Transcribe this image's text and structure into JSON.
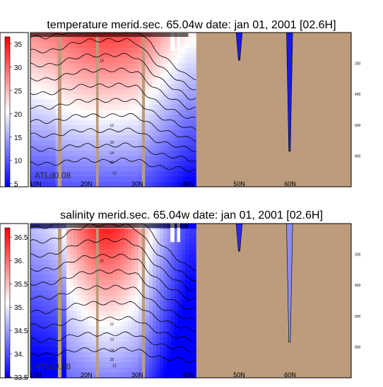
{
  "chart_data": [
    {
      "type": "heatmap",
      "title": "temperature merid.sec. 65.04w   date: jan 01, 2001   [02.6H]",
      "x_tick_labels": [
        "10N",
        "20N",
        "30N",
        "40N",
        "50N",
        "60N"
      ],
      "x_ticks_deg": [
        10,
        20,
        30,
        40,
        50,
        60
      ],
      "x_range_deg": [
        9,
        72
      ],
      "depth_tick_labels": [
        "200",
        "400",
        "600",
        "800"
      ],
      "depth_ticks": [
        200,
        400,
        600,
        800
      ],
      "depth_range": [
        0,
        1000
      ],
      "colorbar": {
        "tick_labels": [
          "5",
          "10",
          "15",
          "20",
          "25",
          "30",
          "35"
        ],
        "ticks": [
          5,
          10,
          15,
          20,
          25,
          30,
          35
        ],
        "range": [
          4.5,
          36.5
        ],
        "colors": [
          "#0000ff",
          "#ffffff",
          "#ff0000"
        ]
      },
      "contour_labels": [
        {
          "text": "19",
          "lat": 23,
          "depth": 190
        },
        {
          "text": "12",
          "lat": 25,
          "depth": 610
        },
        {
          "text": "13",
          "lat": 25,
          "depth": 720
        },
        {
          "text": "14",
          "lat": 25,
          "depth": 790
        },
        {
          "text": "15",
          "lat": 25,
          "depth": 850
        },
        {
          "text": "12",
          "lat": 25.5,
          "depth": 920
        }
      ],
      "watermark": "ATLd0.08",
      "land_color": "#bc9c7c"
    },
    {
      "type": "heatmap",
      "title": "salinity merid.sec. 65.04w   date: jan 01, 2001   [02.6H]",
      "x_tick_labels": [
        "10N",
        "20N",
        "30N",
        "40N",
        "50N",
        "60N"
      ],
      "x_ticks_deg": [
        10,
        20,
        30,
        40,
        50,
        60
      ],
      "x_range_deg": [
        9,
        72
      ],
      "depth_tick_labels": [
        "200",
        "400",
        "600",
        "800"
      ],
      "depth_ticks": [
        200,
        400,
        600,
        800
      ],
      "depth_range": [
        0,
        1000
      ],
      "colorbar": {
        "tick_labels": [
          "33.5",
          "34.",
          "34.5",
          "35.",
          "35.5",
          "36.",
          "36.5"
        ],
        "ticks": [
          33.5,
          34.0,
          34.5,
          35.0,
          35.5,
          36.0,
          36.5
        ],
        "range": [
          33.5,
          36.7
        ],
        "colors": [
          "#0000ff",
          "#ffffff",
          "#ff0000"
        ]
      },
      "contour_labels": [
        {
          "text": "10",
          "lat": 23,
          "depth": 250
        },
        {
          "text": "12",
          "lat": 25,
          "depth": 660
        },
        {
          "text": "13",
          "lat": 25,
          "depth": 760
        },
        {
          "text": "14",
          "lat": 25,
          "depth": 830
        },
        {
          "text": "15",
          "lat": 25,
          "depth": 890
        },
        {
          "text": "12",
          "lat": 25.5,
          "depth": 930
        }
      ],
      "watermark": "ATLd0.08",
      "land_color": "#bc9c7c"
    }
  ]
}
